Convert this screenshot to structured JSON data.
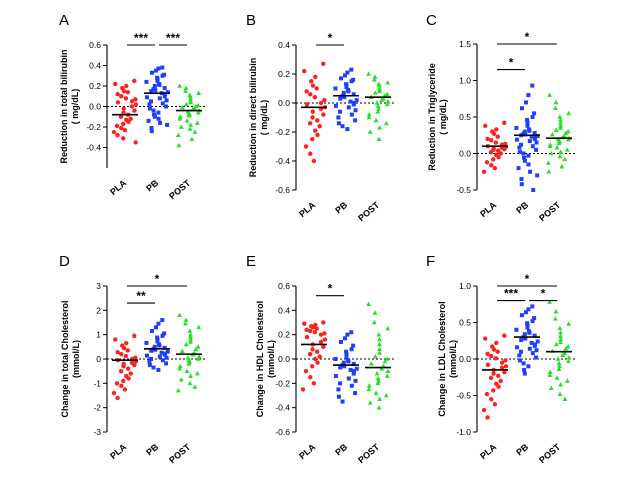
{
  "colors": {
    "PLA": "#ff2020",
    "PB": "#1f3fff",
    "POST": "#22e022",
    "axis": "#000000"
  },
  "chart_data": [
    {
      "type": "scatter",
      "letter": "A",
      "ylabel_line1": "Reduction in total bilirubin",
      "ylabel_line2": "( mg/dL)",
      "ylim": [
        -0.6,
        0.6
      ],
      "yticks": [
        -0.4,
        -0.2,
        0.0,
        0.2,
        0.4,
        0.6
      ],
      "ytick_labels": [
        "-0.4",
        "-0.2",
        "0.0",
        "0.2",
        "0.4",
        "0.6"
      ],
      "categories": [
        "PLA",
        "PB",
        "POST"
      ],
      "means": [
        -0.08,
        0.13,
        -0.04
      ],
      "series": [
        {
          "name": "PLA",
          "values": [
            0.25,
            0.22,
            0.2,
            0.18,
            0.15,
            0.14,
            0.12,
            0.1,
            0.08,
            0.07,
            0.05,
            0.04,
            0.02,
            0.0,
            -0.02,
            -0.04,
            -0.06,
            -0.08,
            -0.1,
            -0.12,
            -0.13,
            -0.15,
            -0.17,
            -0.19,
            -0.21,
            -0.23,
            -0.25,
            -0.28,
            -0.31,
            -0.35
          ]
        },
        {
          "name": "PB",
          "values": [
            0.38,
            0.37,
            0.35,
            0.33,
            0.31,
            0.3,
            0.28,
            0.27,
            0.25,
            0.24,
            0.22,
            0.21,
            0.2,
            0.18,
            0.17,
            0.16,
            0.15,
            0.14,
            0.13,
            0.12,
            0.1,
            0.09,
            0.08,
            0.06,
            0.05,
            0.03,
            0.02,
            0.0,
            -0.02,
            -0.04,
            -0.06,
            -0.08,
            -0.1,
            -0.12,
            -0.14,
            -0.16,
            -0.18,
            -0.21,
            -0.24
          ]
        },
        {
          "name": "POST",
          "values": [
            0.2,
            0.18,
            0.15,
            0.13,
            0.11,
            0.09,
            0.07,
            0.05,
            0.04,
            0.02,
            0.01,
            0.0,
            -0.01,
            -0.02,
            -0.03,
            -0.04,
            -0.05,
            -0.06,
            -0.07,
            -0.08,
            -0.09,
            -0.1,
            -0.12,
            -0.14,
            -0.16,
            -0.18,
            -0.2,
            -0.22,
            -0.25,
            -0.28,
            -0.32,
            -0.38
          ]
        }
      ],
      "brackets": [
        {
          "from": 0,
          "to": 1,
          "level": 0.6,
          "label": "***"
        },
        {
          "from": 1,
          "to": 2,
          "level": 0.6,
          "label": "***"
        }
      ]
    },
    {
      "type": "scatter",
      "letter": "B",
      "ylabel_line1": "Reduction in direct bilirubin",
      "ylabel_line2": "( mg/dL)",
      "ylim": [
        -0.6,
        0.4
      ],
      "yticks": [
        -0.6,
        -0.4,
        -0.2,
        0.0,
        0.2,
        0.4
      ],
      "ytick_labels": [
        "-0.6",
        "-0.4",
        "-0.2",
        "0.0",
        "0.2",
        "0.4"
      ],
      "categories": [
        "PLA",
        "PB",
        "POST"
      ],
      "means": [
        -0.03,
        0.05,
        0.04
      ],
      "series": [
        {
          "name": "PLA",
          "values": [
            0.27,
            0.22,
            0.18,
            0.15,
            0.12,
            0.1,
            0.08,
            0.06,
            0.04,
            0.02,
            0.0,
            -0.01,
            -0.03,
            -0.04,
            -0.06,
            -0.08,
            -0.1,
            -0.12,
            -0.14,
            -0.16,
            -0.19,
            -0.22,
            -0.25,
            -0.3,
            -0.35,
            -0.4
          ]
        },
        {
          "name": "PB",
          "values": [
            0.23,
            0.21,
            0.19,
            0.17,
            0.16,
            0.15,
            0.13,
            0.12,
            0.11,
            0.1,
            0.09,
            0.08,
            0.07,
            0.06,
            0.05,
            0.04,
            0.03,
            0.02,
            0.01,
            0.0,
            -0.01,
            -0.02,
            -0.03,
            -0.05,
            -0.06,
            -0.08,
            -0.1,
            -0.12,
            -0.14,
            -0.16,
            -0.18
          ]
        },
        {
          "name": "POST",
          "values": [
            0.2,
            0.18,
            0.16,
            0.14,
            0.13,
            0.12,
            0.1,
            0.09,
            0.08,
            0.07,
            0.06,
            0.05,
            0.04,
            0.03,
            0.02,
            0.01,
            0.0,
            -0.01,
            -0.02,
            -0.04,
            -0.06,
            -0.08,
            -0.1,
            -0.12,
            -0.14,
            -0.17,
            -0.2,
            -0.25
          ]
        }
      ],
      "brackets": [
        {
          "from": 0,
          "to": 1,
          "level": 0.4,
          "label": "*"
        }
      ]
    },
    {
      "type": "scatter",
      "letter": "C",
      "ylabel_line1": "Reduction in Triglyceride",
      "ylabel_line2": "( mg/dL)",
      "ylim": [
        -0.5,
        1.5
      ],
      "yticks": [
        -0.5,
        0.0,
        0.5,
        1.0,
        1.5
      ],
      "ytick_labels": [
        "-0.5",
        "0.0",
        "0.5",
        "1.0",
        "1.5"
      ],
      "categories": [
        "PLA",
        "PB",
        "POST"
      ],
      "means": [
        0.1,
        0.25,
        0.21
      ],
      "series": [
        {
          "name": "PLA",
          "values": [
            0.42,
            0.38,
            0.33,
            0.3,
            0.27,
            0.23,
            0.2,
            0.18,
            0.15,
            0.13,
            0.12,
            0.1,
            0.09,
            0.08,
            0.07,
            0.06,
            0.05,
            0.04,
            0.02,
            0.0,
            -0.02,
            -0.05,
            -0.08,
            -0.12,
            -0.16,
            -0.2,
            -0.25
          ]
        },
        {
          "name": "PB",
          "values": [
            0.93,
            0.8,
            0.7,
            0.62,
            0.55,
            0.5,
            0.46,
            0.42,
            0.38,
            0.35,
            0.33,
            0.31,
            0.3,
            0.28,
            0.27,
            0.26,
            0.25,
            0.24,
            0.23,
            0.22,
            0.2,
            0.19,
            0.17,
            0.15,
            0.12,
            0.1,
            0.08,
            0.05,
            0.02,
            0.0,
            -0.03,
            -0.06,
            -0.1,
            -0.15,
            -0.2,
            -0.25,
            -0.3,
            -0.35,
            -0.42,
            -0.5
          ]
        },
        {
          "name": "POST",
          "values": [
            0.8,
            0.7,
            0.62,
            0.55,
            0.5,
            0.46,
            0.42,
            0.38,
            0.35,
            0.32,
            0.3,
            0.28,
            0.26,
            0.24,
            0.22,
            0.21,
            0.2,
            0.19,
            0.18,
            0.16,
            0.14,
            0.12,
            0.1,
            0.08,
            0.05,
            0.02,
            0.0,
            -0.04,
            -0.08,
            -0.13,
            -0.18,
            -0.25
          ]
        }
      ],
      "brackets": [
        {
          "from": 0,
          "to": 1,
          "level": 1.15,
          "label": "*"
        },
        {
          "from": 0,
          "to": 2,
          "level": 1.5,
          "label": "*"
        }
      ]
    },
    {
      "type": "scatter",
      "letter": "D",
      "ylabel_line1": "Change in total Cholesterol",
      "ylabel_line2": "(mmol/L)",
      "ylim": [
        -3,
        3
      ],
      "yticks": [
        -3,
        -2,
        -1,
        0,
        1,
        2,
        3
      ],
      "ytick_labels": [
        "-3",
        "-2",
        "-1",
        "0",
        "1",
        "2",
        "3"
      ],
      "categories": [
        "PLA",
        "PB",
        "POST"
      ],
      "means": [
        -0.05,
        0.42,
        0.2
      ],
      "series": [
        {
          "name": "PLA",
          "values": [
            0.95,
            0.8,
            0.65,
            0.55,
            0.45,
            0.35,
            0.28,
            0.2,
            0.12,
            0.05,
            0.0,
            -0.05,
            -0.1,
            -0.15,
            -0.2,
            -0.25,
            -0.3,
            -0.4,
            -0.5,
            -0.6,
            -0.7,
            -0.8,
            -0.9,
            -1.0,
            -1.1,
            -1.25,
            -1.4,
            -1.6
          ]
        },
        {
          "name": "PB",
          "values": [
            1.6,
            1.45,
            1.3,
            1.15,
            1.05,
            0.95,
            0.88,
            0.8,
            0.72,
            0.66,
            0.6,
            0.55,
            0.5,
            0.46,
            0.42,
            0.38,
            0.34,
            0.3,
            0.26,
            0.22,
            0.18,
            0.14,
            0.1,
            0.05,
            0.0,
            -0.05,
            -0.1,
            -0.18,
            -0.25,
            -0.35,
            -0.45
          ]
        },
        {
          "name": "POST",
          "values": [
            1.8,
            1.6,
            1.45,
            1.3,
            1.15,
            1.0,
            0.9,
            0.8,
            0.7,
            0.6,
            0.5,
            0.4,
            0.32,
            0.25,
            0.18,
            0.1,
            0.05,
            0.0,
            -0.05,
            -0.12,
            -0.2,
            -0.3,
            -0.4,
            -0.5,
            -0.6,
            -0.7,
            -0.85,
            -1.0,
            -1.15,
            -1.3
          ]
        }
      ],
      "brackets": [
        {
          "from": 0,
          "to": 1,
          "level": 2.3,
          "label": "**"
        },
        {
          "from": 0,
          "to": 2,
          "level": 3.0,
          "label": "*"
        }
      ]
    },
    {
      "type": "scatter",
      "letter": "E",
      "ylabel_line1": "Change in HDL Cholesterol",
      "ylabel_line2": "(mmol/L)",
      "ylim": [
        -0.6,
        0.6
      ],
      "yticks": [
        -0.6,
        -0.4,
        -0.2,
        0.0,
        0.2,
        0.4,
        0.6
      ],
      "ytick_labels": [
        "-0.6",
        "-0.4",
        "-0.2",
        "0.0",
        "0.2",
        "0.4",
        "0.6"
      ],
      "categories": [
        "PLA",
        "PB",
        "POST"
      ],
      "means": [
        0.12,
        -0.05,
        -0.07
      ],
      "series": [
        {
          "name": "PLA",
          "values": [
            0.3,
            0.29,
            0.28,
            0.27,
            0.26,
            0.25,
            0.24,
            0.23,
            0.22,
            0.21,
            0.2,
            0.18,
            0.16,
            0.14,
            0.12,
            0.1,
            0.08,
            0.06,
            0.04,
            0.02,
            0.0,
            -0.03,
            -0.06,
            -0.1,
            -0.15,
            -0.2,
            -0.25
          ]
        },
        {
          "name": "PB",
          "values": [
            0.22,
            0.2,
            0.17,
            0.14,
            0.11,
            0.08,
            0.06,
            0.04,
            0.02,
            0.0,
            -0.01,
            -0.02,
            -0.03,
            -0.04,
            -0.05,
            -0.06,
            -0.07,
            -0.08,
            -0.09,
            -0.1,
            -0.12,
            -0.14,
            -0.16,
            -0.18,
            -0.2,
            -0.22,
            -0.25,
            -0.28,
            -0.31,
            -0.35
          ]
        },
        {
          "name": "POST",
          "values": [
            0.45,
            0.38,
            0.3,
            0.25,
            0.2,
            0.16,
            0.12,
            0.08,
            0.05,
            0.02,
            0.0,
            -0.02,
            -0.04,
            -0.06,
            -0.08,
            -0.1,
            -0.12,
            -0.14,
            -0.16,
            -0.18,
            -0.2,
            -0.22,
            -0.25,
            -0.28,
            -0.3,
            -0.33,
            -0.36,
            -0.4
          ]
        }
      ],
      "brackets": [
        {
          "from": 0,
          "to": 1,
          "level": 0.52,
          "label": "*"
        }
      ]
    },
    {
      "type": "scatter",
      "letter": "F",
      "ylabel_line1": "Change in LDL Cholesterol",
      "ylabel_line2": "(mmol/L)",
      "ylim": [
        -1.0,
        1.0
      ],
      "yticks": [
        -1.0,
        -0.5,
        0.0,
        0.5,
        1.0
      ],
      "ytick_labels": [
        "-1.0",
        "-0.5",
        "0.0",
        "0.5",
        "1.0"
      ],
      "categories": [
        "PLA",
        "PB",
        "POST"
      ],
      "means": [
        -0.15,
        0.3,
        0.1
      ],
      "series": [
        {
          "name": "PLA",
          "values": [
            0.32,
            0.28,
            0.22,
            0.17,
            0.13,
            0.1,
            0.07,
            0.04,
            0.01,
            -0.02,
            -0.05,
            -0.08,
            -0.1,
            -0.12,
            -0.15,
            -0.18,
            -0.2,
            -0.23,
            -0.26,
            -0.3,
            -0.34,
            -0.38,
            -0.43,
            -0.48,
            -0.55,
            -0.62,
            -0.7,
            -0.8
          ]
        },
        {
          "name": "PB",
          "values": [
            0.72,
            0.68,
            0.64,
            0.6,
            0.56,
            0.52,
            0.49,
            0.46,
            0.43,
            0.4,
            0.38,
            0.36,
            0.34,
            0.32,
            0.3,
            0.28,
            0.26,
            0.24,
            0.22,
            0.2,
            0.18,
            0.16,
            0.14,
            0.12,
            0.1,
            0.08,
            0.05,
            0.02,
            -0.02,
            -0.06,
            -0.1,
            -0.15,
            -0.2
          ]
        },
        {
          "name": "POST",
          "values": [
            0.78,
            0.65,
            0.55,
            0.48,
            0.42,
            0.36,
            0.31,
            0.27,
            0.23,
            0.2,
            0.17,
            0.14,
            0.11,
            0.08,
            0.05,
            0.02,
            0.0,
            -0.03,
            -0.06,
            -0.1,
            -0.14,
            -0.18,
            -0.22,
            -0.26,
            -0.3,
            -0.35,
            -0.4,
            -0.48,
            -0.55
          ]
        }
      ],
      "brackets": [
        {
          "from": 0,
          "to": 1,
          "level": 0.8,
          "label": "***"
        },
        {
          "from": 1,
          "to": 2,
          "level": 0.8,
          "label": "*"
        },
        {
          "from": 0,
          "to": 2,
          "level": 1.0,
          "label": "*"
        }
      ]
    }
  ]
}
